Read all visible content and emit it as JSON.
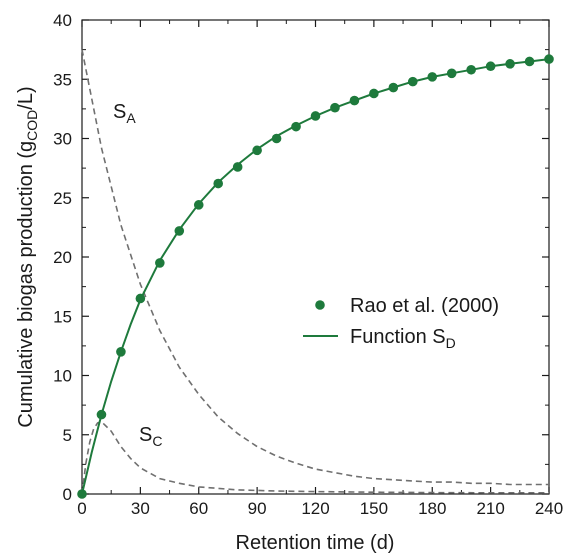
{
  "chart_data": {
    "type": "line",
    "xlabel": "Retention time (d)",
    "ylabel": {
      "main": "Cumulative biogas production (g",
      "sub": "COD",
      "tail": "/L)"
    },
    "xlim": [
      0,
      240
    ],
    "ylim": [
      0,
      40
    ],
    "x_ticks": [
      0,
      30,
      60,
      90,
      120,
      150,
      180,
      210,
      240
    ],
    "y_ticks": [
      0,
      5,
      10,
      15,
      20,
      25,
      30,
      35,
      40
    ],
    "grid": false,
    "legend_position": "center-right",
    "series": [
      {
        "name": "Rao et al. (2000)",
        "kind": "scatter",
        "color": "#1e7a3c",
        "x": [
          0,
          10,
          20,
          30,
          40,
          50,
          60,
          70,
          80,
          90,
          100,
          110,
          120,
          130,
          140,
          150,
          160,
          170,
          180,
          190,
          200,
          210,
          220,
          230,
          240
        ],
        "y": [
          0,
          6.7,
          12.0,
          16.5,
          19.5,
          22.2,
          24.4,
          26.2,
          27.6,
          29.0,
          30.0,
          31.0,
          31.9,
          32.6,
          33.2,
          33.8,
          34.3,
          34.8,
          35.2,
          35.5,
          35.8,
          36.1,
          36.3,
          36.5,
          36.7
        ]
      },
      {
        "name": {
          "main": "Function S",
          "sub": "D"
        },
        "kind": "line",
        "color": "#1e7a3c",
        "x": [
          0,
          5,
          10,
          15,
          20,
          25,
          30,
          40,
          50,
          60,
          70,
          80,
          90,
          100,
          110,
          120,
          130,
          140,
          150,
          160,
          170,
          180,
          190,
          200,
          210,
          220,
          230,
          240
        ],
        "y": [
          0,
          3.5,
          6.7,
          9.5,
          12.0,
          14.3,
          16.4,
          19.7,
          22.3,
          24.5,
          26.3,
          27.8,
          29.1,
          30.2,
          31.1,
          31.9,
          32.6,
          33.2,
          33.8,
          34.3,
          34.8,
          35.2,
          35.5,
          35.8,
          36.1,
          36.3,
          36.5,
          36.7
        ]
      },
      {
        "name": {
          "main": "S",
          "sub": "A"
        },
        "kind": "dashed",
        "color": "#707070",
        "x": [
          0,
          10,
          20,
          30,
          40,
          50,
          60,
          70,
          80,
          90,
          100,
          110,
          120,
          130,
          140,
          150,
          160,
          170,
          180,
          190,
          200,
          210,
          220,
          230,
          240
        ],
        "y": [
          37.5,
          29.2,
          22.7,
          17.7,
          13.8,
          10.7,
          8.4,
          6.5,
          5.1,
          4.0,
          3.2,
          2.6,
          2.1,
          1.8,
          1.5,
          1.3,
          1.2,
          1.1,
          1.0,
          1.0,
          0.9,
          0.9,
          0.8,
          0.8,
          0.8
        ]
      },
      {
        "name": {
          "main": "S",
          "sub": "C"
        },
        "kind": "dashed",
        "color": "#707070",
        "x": [
          0,
          2,
          4,
          6,
          8,
          10,
          15,
          20,
          25,
          30,
          40,
          50,
          60,
          80,
          100,
          120,
          150,
          180,
          210,
          240
        ],
        "y": [
          0,
          2.6,
          4.4,
          5.5,
          6.0,
          6.1,
          5.3,
          4.0,
          3.0,
          2.2,
          1.3,
          0.9,
          0.6,
          0.35,
          0.25,
          0.2,
          0.15,
          0.12,
          0.1,
          0.1
        ]
      }
    ]
  }
}
